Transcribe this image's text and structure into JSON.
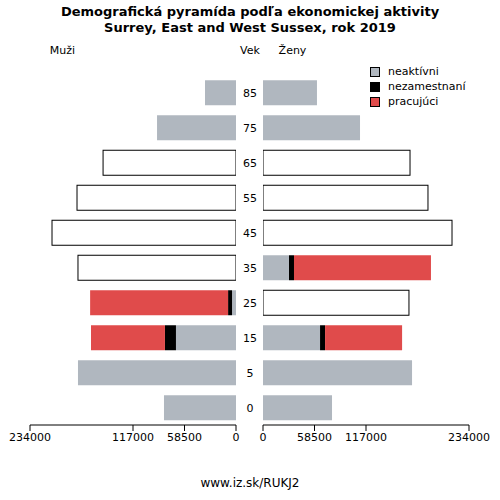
{
  "chart_data": {
    "type": "bar",
    "orientation": "horizontal",
    "stacked": true,
    "title": "Demografická pyramída podľa ekonomickej aktivity",
    "subtitle": "Surrey, East and West Sussex, rok 2019",
    "y_label": "Vek",
    "source": "www.iz.sk/RUKJ2",
    "legend": "top right",
    "categories": [
      "0",
      "5",
      "15",
      "25",
      "35",
      "45",
      "55",
      "65",
      "75",
      "85"
    ],
    "xlim": [
      0,
      234000
    ],
    "xticks": [
      0,
      58500,
      117000,
      234000
    ],
    "panels": [
      {
        "name": "Muži",
        "series": [
          {
            "name": "neaktívni",
            "color": "#b0b7bf",
            "values": [
              81800,
              179500,
              68200,
              4500,
              null,
              null,
              null,
              null,
              89700,
              35200
            ]
          },
          {
            "name": "nezamestnaní",
            "color": "#000000",
            "values": [
              null,
              null,
              12500,
              4500,
              null,
              null,
              null,
              null,
              null,
              null
            ]
          },
          {
            "name": "pracujúci",
            "color": "#e04b4b",
            "values": [
              null,
              null,
              84000,
              156700,
              null,
              null,
              null,
              null,
              null,
              null
            ]
          }
        ],
        "totals": [
          null,
          null,
          null,
          null,
          179500,
          209000,
          180600,
          151000,
          null,
          null
        ]
      },
      {
        "name": "Ženy",
        "series": [
          {
            "name": "neaktívni",
            "color": "#b0b7bf",
            "values": [
              78400,
              169300,
              64800,
              null,
              29500,
              null,
              null,
              null,
              110200,
              61300
            ]
          },
          {
            "name": "nezamestnaní",
            "color": "#000000",
            "values": [
              null,
              null,
              5700,
              null,
              5700,
              null,
              null,
              null,
              null,
              null
            ]
          },
          {
            "name": "pracujúci",
            "color": "#e04b4b",
            "values": [
              null,
              null,
              87500,
              null,
              155600,
              null,
              null,
              null,
              null,
              null
            ]
          }
        ],
        "totals": [
          null,
          null,
          null,
          165800,
          null,
          214700,
          187400,
          167000,
          null,
          null
        ]
      }
    ]
  }
}
